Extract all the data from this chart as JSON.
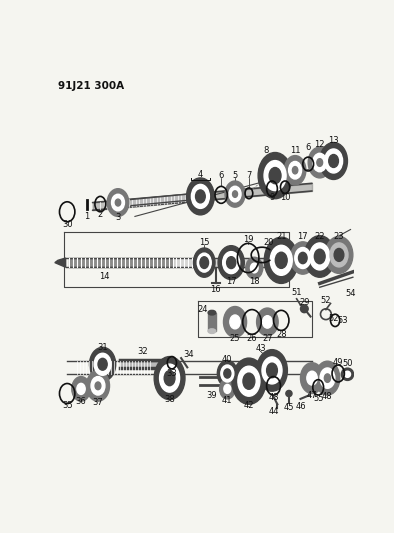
{
  "title_code": "91J21 300A",
  "bg_color": "#f5f5f0",
  "fig_width": 3.94,
  "fig_height": 5.33,
  "dpi": 100
}
